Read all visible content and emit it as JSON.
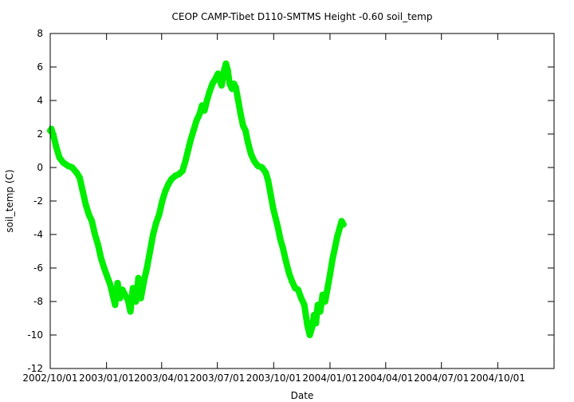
{
  "chart_data": {
    "type": "line",
    "title": "CEOP CAMP-Tibet D110-SMTMS Height -0.60 soil_temp",
    "xlabel": "Date",
    "ylabel": "soil_temp (C)",
    "xlim": [
      "2002-10-01",
      "2005-01-01"
    ],
    "ylim": [
      -12,
      8
    ],
    "y_ticks": [
      8,
      6,
      4,
      2,
      0,
      -2,
      -4,
      -6,
      -8,
      -10,
      -12
    ],
    "x_ticks": [
      {
        "date": "2002-10-01",
        "label": "2002/10/01"
      },
      {
        "date": "2003-01-01",
        "label": "2003/01/01"
      },
      {
        "date": "2003-04-01",
        "label": "2003/04/01"
      },
      {
        "date": "2003-07-01",
        "label": "2003/07/01"
      },
      {
        "date": "2003-10-01",
        "label": "2003/10/01"
      },
      {
        "date": "2004-01-01",
        "label": "2004/01/01"
      },
      {
        "date": "2004-04-01",
        "label": "2004/04/01"
      },
      {
        "date": "2004-07-01",
        "label": "2004/07/01"
      },
      {
        "date": "2004-10-01",
        "label": "2004/10/01"
      }
    ],
    "grid": false,
    "series": [
      {
        "color": "#00ee00",
        "points": [
          {
            "x": "2002-10-01",
            "y": 2.2
          },
          {
            "x": "2002-10-03",
            "y": 2.3
          },
          {
            "x": "2002-10-07",
            "y": 1.8
          },
          {
            "x": "2002-10-11",
            "y": 1.2
          },
          {
            "x": "2002-10-16",
            "y": 0.6
          },
          {
            "x": "2002-10-22",
            "y": 0.3
          },
          {
            "x": "2002-10-30",
            "y": 0.1
          },
          {
            "x": "2002-11-06",
            "y": 0.0
          },
          {
            "x": "2002-11-13",
            "y": -0.3
          },
          {
            "x": "2002-11-18",
            "y": -0.6
          },
          {
            "x": "2002-11-23",
            "y": -1.4
          },
          {
            "x": "2002-11-28",
            "y": -2.2
          },
          {
            "x": "2002-12-03",
            "y": -2.8
          },
          {
            "x": "2002-12-08",
            "y": -3.2
          },
          {
            "x": "2002-12-13",
            "y": -4.0
          },
          {
            "x": "2002-12-18",
            "y": -4.6
          },
          {
            "x": "2002-12-23",
            "y": -5.4
          },
          {
            "x": "2002-12-28",
            "y": -6.0
          },
          {
            "x": "2003-01-02",
            "y": -6.5
          },
          {
            "x": "2003-01-07",
            "y": -7.0
          },
          {
            "x": "2003-01-11",
            "y": -7.6
          },
          {
            "x": "2003-01-15",
            "y": -8.2
          },
          {
            "x": "2003-01-19",
            "y": -6.9
          },
          {
            "x": "2003-01-23",
            "y": -7.8
          },
          {
            "x": "2003-01-27",
            "y": -7.3
          },
          {
            "x": "2003-01-31",
            "y": -7.6
          },
          {
            "x": "2003-02-05",
            "y": -7.9
          },
          {
            "x": "2003-02-09",
            "y": -8.6
          },
          {
            "x": "2003-02-13",
            "y": -7.2
          },
          {
            "x": "2003-02-18",
            "y": -8.0
          },
          {
            "x": "2003-02-22",
            "y": -6.6
          },
          {
            "x": "2003-02-26",
            "y": -7.8
          },
          {
            "x": "2003-03-03",
            "y": -6.8
          },
          {
            "x": "2003-03-08",
            "y": -6.0
          },
          {
            "x": "2003-03-13",
            "y": -5.0
          },
          {
            "x": "2003-03-18",
            "y": -4.0
          },
          {
            "x": "2003-03-23",
            "y": -3.3
          },
          {
            "x": "2003-03-28",
            "y": -2.8
          },
          {
            "x": "2003-04-02",
            "y": -2.0
          },
          {
            "x": "2003-04-07",
            "y": -1.4
          },
          {
            "x": "2003-04-12",
            "y": -1.0
          },
          {
            "x": "2003-04-17",
            "y": -0.7
          },
          {
            "x": "2003-04-23",
            "y": -0.5
          },
          {
            "x": "2003-04-29",
            "y": -0.4
          },
          {
            "x": "2003-05-05",
            "y": -0.2
          },
          {
            "x": "2003-05-10",
            "y": 0.4
          },
          {
            "x": "2003-05-14",
            "y": 1.0
          },
          {
            "x": "2003-05-18",
            "y": 1.6
          },
          {
            "x": "2003-05-23",
            "y": 2.2
          },
          {
            "x": "2003-05-28",
            "y": 2.8
          },
          {
            "x": "2003-06-02",
            "y": 3.2
          },
          {
            "x": "2003-06-06",
            "y": 3.7
          },
          {
            "x": "2003-06-10",
            "y": 3.4
          },
          {
            "x": "2003-06-14",
            "y": 4.0
          },
          {
            "x": "2003-06-18",
            "y": 4.5
          },
          {
            "x": "2003-06-23",
            "y": 5.0
          },
          {
            "x": "2003-06-28",
            "y": 5.3
          },
          {
            "x": "2003-07-02",
            "y": 5.6
          },
          {
            "x": "2003-07-05",
            "y": 5.2
          },
          {
            "x": "2003-07-08",
            "y": 4.9
          },
          {
            "x": "2003-07-12",
            "y": 5.8
          },
          {
            "x": "2003-07-15",
            "y": 6.2
          },
          {
            "x": "2003-07-18",
            "y": 5.8
          },
          {
            "x": "2003-07-21",
            "y": 5.0
          },
          {
            "x": "2003-07-25",
            "y": 4.7
          },
          {
            "x": "2003-07-28",
            "y": 5.0
          },
          {
            "x": "2003-07-31",
            "y": 4.8
          },
          {
            "x": "2003-08-04",
            "y": 4.0
          },
          {
            "x": "2003-08-08",
            "y": 3.2
          },
          {
            "x": "2003-08-12",
            "y": 2.5
          },
          {
            "x": "2003-08-16",
            "y": 2.2
          },
          {
            "x": "2003-08-20",
            "y": 1.5
          },
          {
            "x": "2003-08-25",
            "y": 0.8
          },
          {
            "x": "2003-08-30",
            "y": 0.4
          },
          {
            "x": "2003-09-05",
            "y": 0.1
          },
          {
            "x": "2003-09-12",
            "y": 0.0
          },
          {
            "x": "2003-09-18",
            "y": -0.3
          },
          {
            "x": "2003-09-22",
            "y": -0.8
          },
          {
            "x": "2003-09-26",
            "y": -1.6
          },
          {
            "x": "2003-09-30",
            "y": -2.4
          },
          {
            "x": "2003-10-04",
            "y": -3.0
          },
          {
            "x": "2003-10-08",
            "y": -3.6
          },
          {
            "x": "2003-10-12",
            "y": -4.3
          },
          {
            "x": "2003-10-16",
            "y": -4.8
          },
          {
            "x": "2003-10-21",
            "y": -5.6
          },
          {
            "x": "2003-10-26",
            "y": -6.3
          },
          {
            "x": "2003-10-31",
            "y": -6.8
          },
          {
            "x": "2003-11-05",
            "y": -7.2
          },
          {
            "x": "2003-11-10",
            "y": -7.3
          },
          {
            "x": "2003-11-15",
            "y": -7.8
          },
          {
            "x": "2003-11-20",
            "y": -8.2
          },
          {
            "x": "2003-11-25",
            "y": -9.4
          },
          {
            "x": "2003-11-29",
            "y": -10.0
          },
          {
            "x": "2003-12-03",
            "y": -9.5
          },
          {
            "x": "2003-12-06",
            "y": -8.8
          },
          {
            "x": "2003-12-09",
            "y": -9.3
          },
          {
            "x": "2003-12-12",
            "y": -8.2
          },
          {
            "x": "2003-12-16",
            "y": -8.6
          },
          {
            "x": "2003-12-20",
            "y": -7.6
          },
          {
            "x": "2003-12-24",
            "y": -8.0
          },
          {
            "x": "2003-12-28",
            "y": -7.2
          },
          {
            "x": "2004-01-01",
            "y": -6.4
          },
          {
            "x": "2004-01-05",
            "y": -5.5
          },
          {
            "x": "2004-01-09",
            "y": -4.8
          },
          {
            "x": "2004-01-13",
            "y": -4.1
          },
          {
            "x": "2004-01-17",
            "y": -3.6
          },
          {
            "x": "2004-01-20",
            "y": -3.2
          },
          {
            "x": "2004-01-23",
            "y": -3.4
          }
        ]
      }
    ]
  }
}
